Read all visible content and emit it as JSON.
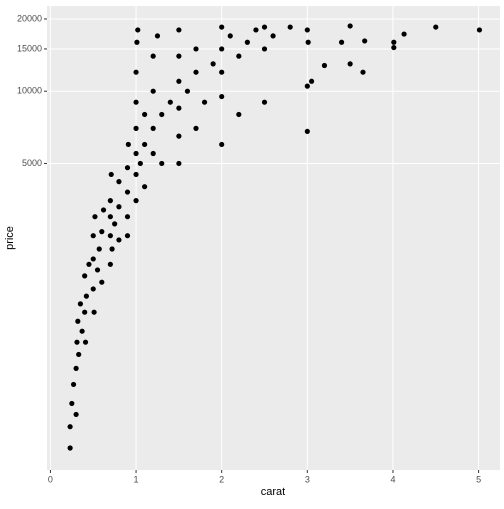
{
  "chart_data": {
    "type": "scatter",
    "x_label": "carat",
    "y_label": "price",
    "log_y": true,
    "grid": true,
    "color": "#000000",
    "xlim": [
      -0.04,
      5.25
    ],
    "xticks": [
      0,
      1,
      2,
      3,
      4,
      5
    ],
    "ylim": [
      264,
      22650
    ],
    "yticks": [
      5000,
      10000,
      15000,
      20000
    ],
    "x": [
      0.23,
      0.23,
      0.25,
      0.27,
      0.3,
      0.3,
      0.31,
      0.32,
      0.33,
      0.35,
      0.37,
      0.4,
      0.4,
      0.41,
      0.42,
      0.45,
      0.5,
      0.5,
      0.5,
      0.51,
      0.52,
      0.55,
      0.57,
      0.6,
      0.6,
      0.62,
      0.7,
      0.7,
      0.7,
      0.7,
      0.71,
      0.72,
      0.75,
      0.8,
      0.8,
      0.8,
      0.9,
      0.9,
      0.9,
      0.91,
      1.0,
      1.0,
      1.0,
      1.0,
      1.0,
      1.0,
      1.01,
      1.02,
      1.05,
      1.1,
      1.1,
      1.2,
      1.2,
      1.2,
      1.2,
      1.25,
      1.3,
      1.4,
      1.5,
      1.5,
      1.5,
      1.5,
      1.5,
      1.6,
      1.7,
      1.7,
      1.8,
      1.9,
      2.0,
      2.0,
      2.0,
      2.0,
      2.1,
      2.2,
      2.3,
      2.4,
      2.5,
      2.5,
      2.6,
      2.8,
      3.0,
      3.0,
      3.0,
      3.01,
      3.05,
      3.2,
      3.4,
      3.5,
      3.5,
      3.65,
      3.67,
      4.01,
      4.01,
      4.13,
      4.5,
      5.01,
      1.5,
      1.7,
      2.0,
      2.2,
      2.5,
      0.9,
      1.1,
      1.3
    ],
    "y": [
      326,
      400,
      500,
      600,
      450,
      700,
      900,
      1100,
      800,
      1300,
      1000,
      1200,
      1700,
      900,
      1400,
      1900,
      1500,
      2000,
      2500,
      1200,
      3000,
      1800,
      2200,
      1600,
      2600,
      3200,
      1900,
      2500,
      3000,
      3500,
      4500,
      2200,
      2800,
      2400,
      3300,
      4200,
      3000,
      3800,
      4800,
      6000,
      3500,
      4500,
      5500,
      7000,
      9000,
      12000,
      16000,
      18000,
      5000,
      6000,
      8000,
      5500,
      7000,
      10000,
      14000,
      17000,
      8000,
      9000,
      6500,
      8500,
      11000,
      14000,
      18000,
      10000,
      12000,
      15000,
      9000,
      13000,
      9500,
      12000,
      15000,
      18500,
      17000,
      14000,
      16000,
      18000,
      15000,
      18500,
      17000,
      18500,
      6800,
      10500,
      18000,
      16000,
      11000,
      12800,
      16000,
      18700,
      13000,
      12000,
      16200,
      15200,
      16000,
      17300,
      18500,
      18000,
      5000,
      7000,
      6000,
      8000,
      9000,
      2500,
      4000,
      5000
    ]
  }
}
